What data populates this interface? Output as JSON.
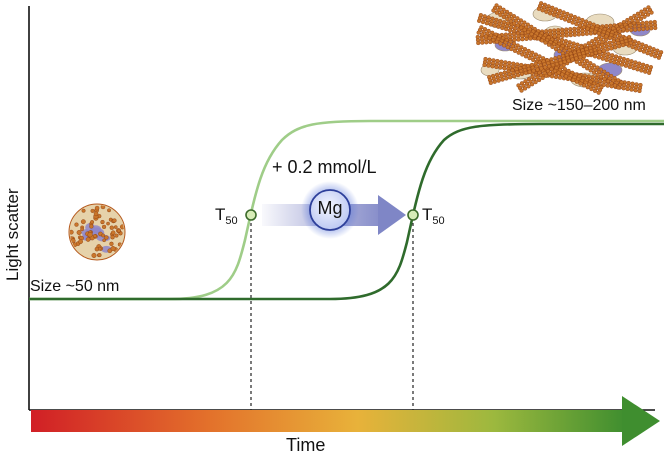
{
  "axes": {
    "y_label": "Light scatter",
    "x_label": "Time"
  },
  "particles": {
    "small_size_label": "Size ~50 nm",
    "large_size_label": "Size ~150–200 nm"
  },
  "magnesium": {
    "concentration_label": "+ 0.2 mmol/L",
    "ion_label": "Mg"
  },
  "markers": {
    "t50_main": "T",
    "t50_sub": "50"
  },
  "colors": {
    "curve_without_mg": "#9fcd88",
    "curve_with_mg": "#2f6b2c",
    "arrow_gradient": [
      "#d11f26",
      "#e3712b",
      "#e8b23a",
      "#9cb83e",
      "#3f8e2f"
    ],
    "mg_circle": "#4a6ad6",
    "mg_arrow": "#7f86c6",
    "particle_gold": "#c9762b",
    "particle_cream": "#e9dcc0",
    "particle_purple": "#8f87c9"
  }
}
